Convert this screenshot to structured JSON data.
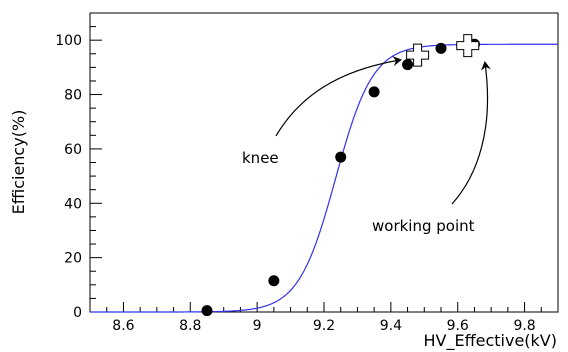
{
  "chart_data": {
    "type": "scatter",
    "xlabel": "HV_Effective(kV)",
    "ylabel": "Efficiency(%)",
    "xlim": [
      8.5,
      9.9
    ],
    "ylim": [
      0,
      110
    ],
    "x_ticks": [
      "8.6",
      "8.8",
      "9",
      "9.2",
      "9.4",
      "9.6",
      "9.8"
    ],
    "x_tick_values": [
      8.6,
      8.8,
      9.0,
      9.2,
      9.4,
      9.6,
      9.8
    ],
    "y_ticks": [
      "0",
      "20",
      "40",
      "60",
      "80",
      "100"
    ],
    "y_tick_values": [
      0,
      20,
      40,
      60,
      80,
      100
    ],
    "grid": false,
    "legend": null,
    "series": [
      {
        "kind": "points",
        "marker": "filled-circle",
        "color": "#000000",
        "x": [
          8.85,
          9.05,
          9.25,
          9.35,
          9.45,
          9.55,
          9.65
        ],
        "y": [
          0.5,
          11.5,
          57,
          81,
          91,
          97,
          98.5
        ]
      },
      {
        "kind": "fit-curve",
        "color": "#3333ee",
        "model": "sigmoid",
        "emax": 98.5,
        "x50": 9.235,
        "slope": 18
      }
    ],
    "special_points": [
      {
        "label": "knee",
        "x": 9.48,
        "y": 94.5,
        "marker": "open-cross"
      },
      {
        "label": "working point",
        "x": 9.63,
        "y": 98,
        "marker": "open-cross"
      }
    ],
    "annotations": [
      {
        "text": "knee",
        "target": "knee"
      },
      {
        "text": "working point",
        "target": "working point"
      }
    ]
  }
}
